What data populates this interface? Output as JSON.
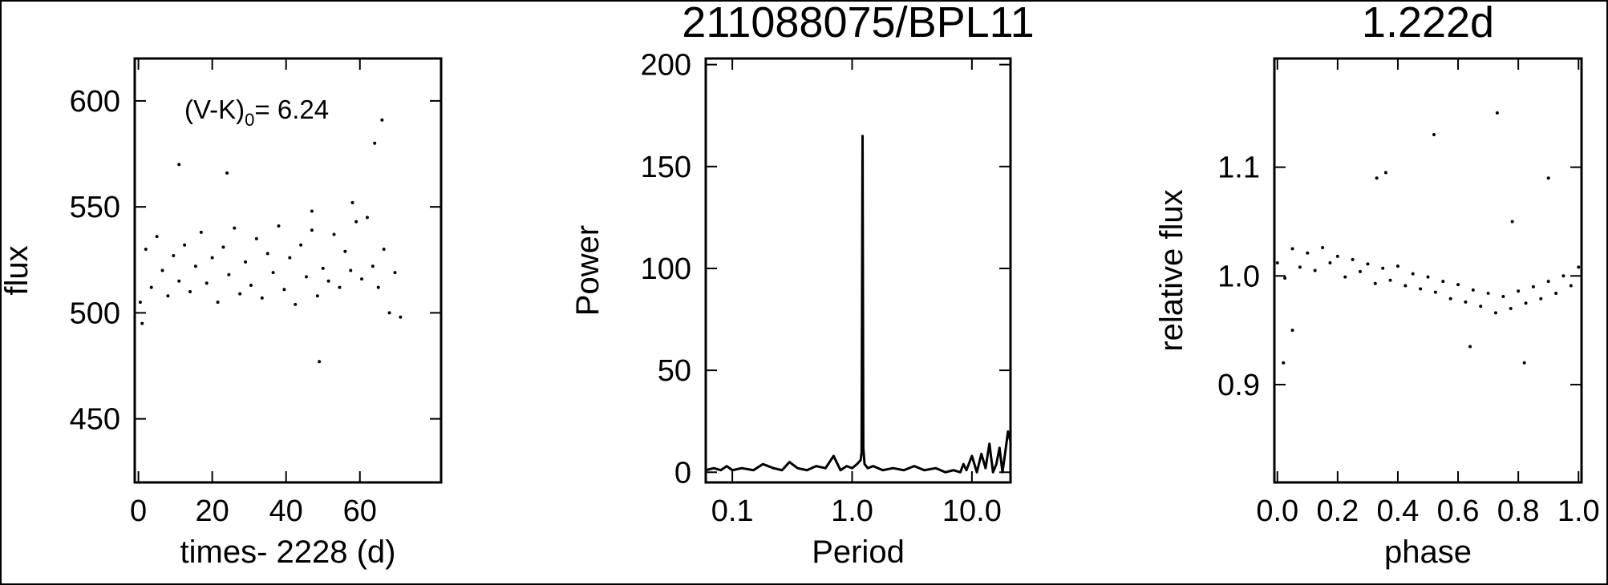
{
  "chart_data": [
    {
      "type": "scatter",
      "xlabel": "times- 2228 (d)",
      "ylabel": "flux",
      "color": "#000000",
      "annotation": [
        "(V-K)",
        "0",
        "= 6.24"
      ],
      "x": [
        0.5,
        2,
        3.5,
        5,
        6.5,
        8,
        9.5,
        11,
        12.5,
        14,
        15.5,
        17,
        18.5,
        20,
        21.5,
        23,
        24.5,
        26,
        27.5,
        29,
        30.5,
        32,
        33.5,
        35,
        36.5,
        38,
        39.5,
        41,
        42.5,
        44,
        45.5,
        47,
        48.5,
        50,
        51.5,
        53,
        54.5,
        56,
        57.5,
        59,
        60.5,
        62,
        63.5,
        65,
        66.5,
        68,
        69.5,
        71,
        11,
        24,
        49,
        64,
        66,
        1,
        47,
        58
      ],
      "values": [
        505,
        530,
        512,
        536,
        520,
        508,
        527,
        515,
        532,
        510,
        522,
        538,
        514,
        526,
        505,
        531,
        518,
        540,
        509,
        524,
        513,
        535,
        507,
        528,
        519,
        541,
        511,
        526,
        504,
        532,
        517,
        539,
        508,
        521,
        515,
        537,
        512,
        529,
        520,
        543,
        516,
        545,
        522,
        512,
        530,
        500,
        519,
        498,
        570,
        566,
        477,
        580,
        591,
        495,
        548,
        552
      ],
      "xlim": [
        -1,
        82
      ],
      "ylim": [
        420,
        620
      ],
      "xticks": [
        0,
        20,
        40,
        60
      ],
      "yticks": [
        450,
        500,
        550,
        600
      ]
    },
    {
      "type": "line",
      "title": "211088075/BPL11",
      "xlabel": "Period",
      "ylabel": "Power",
      "color": "#000000",
      "xscale": "log",
      "x": [
        0.06,
        0.07,
        0.08,
        0.09,
        0.1,
        0.12,
        0.15,
        0.18,
        0.22,
        0.26,
        0.3,
        0.35,
        0.42,
        0.5,
        0.6,
        0.7,
        0.8,
        0.9,
        1.0,
        1.1,
        1.18,
        1.2,
        1.222,
        1.24,
        1.27,
        1.35,
        1.5,
        1.8,
        2.2,
        2.7,
        3.3,
        4,
        5,
        6,
        7,
        8,
        8.5,
        9,
        10,
        11,
        12,
        13,
        14,
        15,
        16,
        17,
        18,
        19,
        20,
        21
      ],
      "values": [
        1,
        2,
        1,
        3,
        1,
        2,
        1,
        4,
        2,
        1,
        5,
        2,
        1,
        3,
        2,
        8,
        1,
        3,
        2,
        4,
        6,
        10,
        165,
        12,
        4,
        2,
        3,
        1,
        2,
        1,
        3,
        1,
        2,
        0,
        1,
        0,
        4,
        1,
        8,
        0,
        9,
        2,
        14,
        0,
        4,
        12,
        0,
        10,
        20,
        15
      ],
      "xlim": [
        0.06,
        21
      ],
      "ylim": [
        -5,
        203
      ],
      "xticks": [
        0.1,
        {
          "value": 1,
          "label": "1.0"
        },
        {
          "value": 10,
          "label": "10.0"
        }
      ],
      "yticks": [
        0,
        50,
        100,
        150,
        200
      ]
    },
    {
      "type": "scatter",
      "title": "1.222d",
      "xlabel": "phase",
      "ylabel": "relative flux",
      "color": "#000000",
      "x": [
        0,
        0.025,
        0.05,
        0.075,
        0.1,
        0.125,
        0.15,
        0.175,
        0.2,
        0.225,
        0.25,
        0.275,
        0.3,
        0.325,
        0.35,
        0.375,
        0.4,
        0.425,
        0.45,
        0.475,
        0.5,
        0.525,
        0.55,
        0.575,
        0.6,
        0.625,
        0.65,
        0.675,
        0.7,
        0.725,
        0.75,
        0.775,
        0.8,
        0.825,
        0.85,
        0.875,
        0.9,
        0.925,
        0.95,
        0.975,
        1.0,
        0.02,
        0.05,
        0.73,
        0.52,
        0.33,
        0.9,
        0.78,
        0.64,
        0.82,
        0.36
      ],
      "values": [
        1.012,
        0.998,
        1.025,
        1.008,
        1.021,
        1.005,
        1.026,
        1.012,
        1.018,
        0.999,
        1.015,
        1.004,
        1.011,
        0.993,
        1.007,
        0.996,
        1.009,
        0.991,
        1.002,
        0.988,
        0.999,
        0.985,
        0.995,
        0.979,
        0.992,
        0.976,
        0.987,
        0.972,
        0.984,
        0.966,
        0.981,
        0.97,
        0.986,
        0.975,
        0.99,
        0.979,
        0.995,
        0.984,
        1.0,
        0.991,
        1.008,
        0.92,
        0.95,
        1.15,
        1.13,
        1.09,
        1.09,
        1.05,
        0.935,
        0.92,
        1.095
      ],
      "xlim": [
        -0.01,
        1.01
      ],
      "ylim": [
        0.81,
        1.2
      ],
      "xticks": [
        {
          "value": 0,
          "label": "0.0"
        },
        0.2,
        0.4,
        0.6,
        0.8,
        {
          "value": 1,
          "label": "1.0"
        }
      ],
      "yticks": [
        0.9,
        {
          "value": 1,
          "label": "1.0"
        },
        1.1
      ]
    }
  ]
}
